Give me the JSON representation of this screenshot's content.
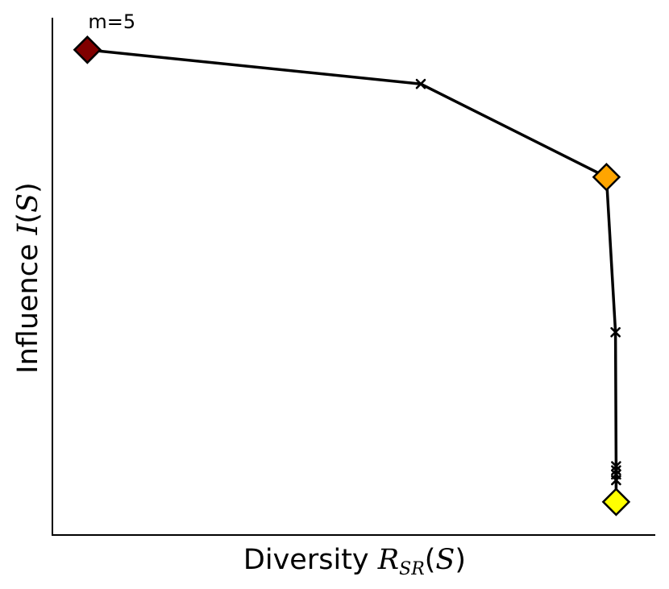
{
  "chart_data": {
    "type": "line",
    "title": "",
    "xlabel": {
      "prefix": "Diversity ",
      "symbol": "R",
      "subscript": "SR",
      "open": "(",
      "arg": "S",
      "close": ")"
    },
    "ylabel": {
      "prefix": "Influence ",
      "symbol": "I",
      "open": "(",
      "arg": "S",
      "close": ")"
    },
    "xlim": [
      0,
      1
    ],
    "ylim": [
      0,
      1
    ],
    "ticks_shown": false,
    "grid": false,
    "legend": "none",
    "series": [
      {
        "points": [
          {
            "x": 0.058,
            "y": 0.938,
            "marker": "diamond",
            "color": "#800000"
          },
          {
            "x": 0.611,
            "y": 0.872,
            "marker": "x"
          },
          {
            "x": 0.919,
            "y": 0.692,
            "marker": "diamond",
            "color": "#ffa500"
          },
          {
            "x": 0.934,
            "y": 0.392,
            "marker": "x"
          },
          {
            "x": 0.935,
            "y": 0.133,
            "marker": "x"
          },
          {
            "x": 0.935,
            "y": 0.125,
            "marker": "x"
          },
          {
            "x": 0.935,
            "y": 0.117,
            "marker": "x"
          },
          {
            "x": 0.935,
            "y": 0.106,
            "marker": "x"
          },
          {
            "x": 0.935,
            "y": 0.064,
            "marker": "diamond",
            "color": "#ffff00"
          }
        ]
      }
    ],
    "annotations": [
      {
        "text": "m=5",
        "point_index": 0
      }
    ]
  }
}
